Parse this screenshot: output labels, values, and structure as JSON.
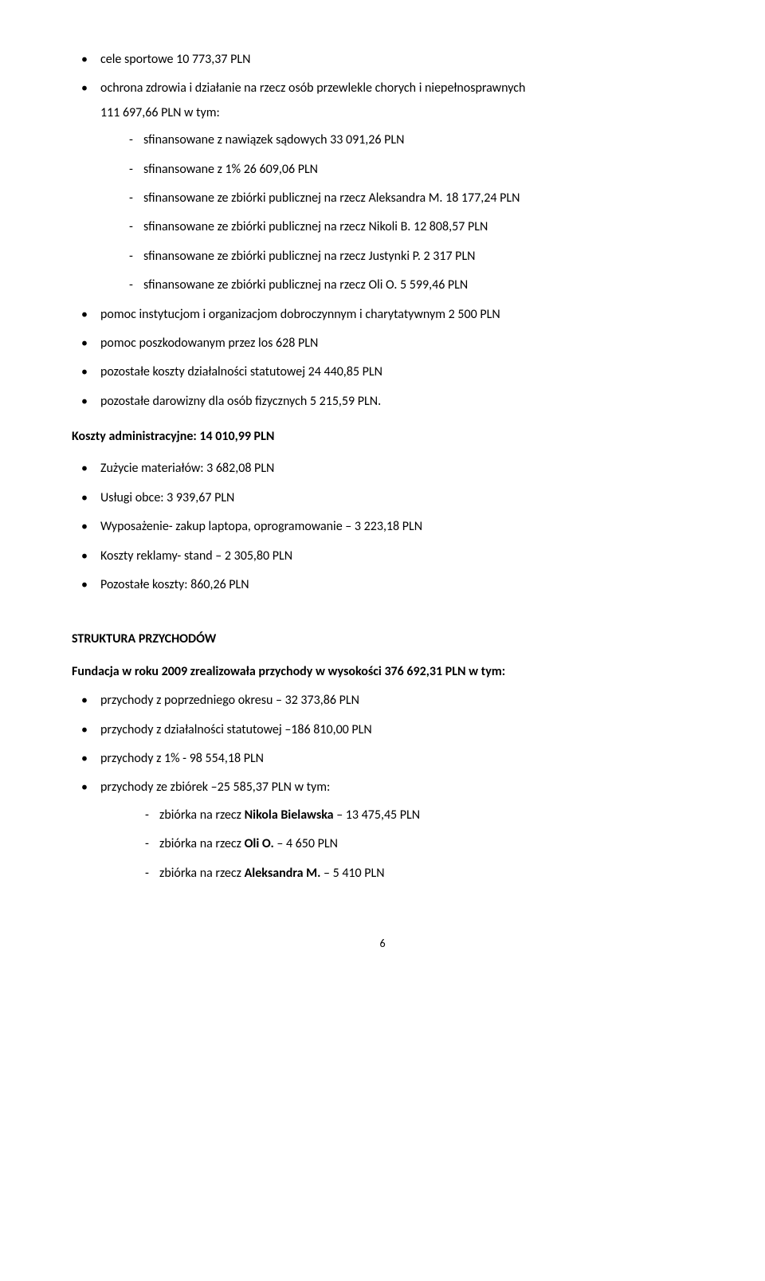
{
  "top_list": {
    "item1": "cele sportowe 10 773,37 PLN",
    "item2_line1": "ochrona zdrowia i działanie na rzecz osób przewlekle chorych i niepełnosprawnych",
    "item2_line2": "111 697,66 PLN w tym:",
    "item2_sub": {
      "s1": "sfinansowane z nawiązek sądowych 33 091,26 PLN",
      "s2": "sfinansowane z 1%  26 609,06 PLN",
      "s3": "sfinansowane ze zbiórki publicznej na rzecz Aleksandra M. 18 177,24 PLN",
      "s4": "sfinansowane ze zbiórki publicznej na rzecz Nikoli B. 12 808,57 PLN",
      "s5": "sfinansowane ze zbiórki publicznej na rzecz Justynki P.  2 317 PLN",
      "s6": "sfinansowane ze zbiórki publicznej na rzecz Oli O. 5 599,46 PLN"
    },
    "item3": "pomoc instytucjom i organizacjom dobroczynnym i charytatywnym 2 500 PLN",
    "item4": "pomoc poszkodowanym przez los 628 PLN",
    "item5": "pozostałe koszty działalności statutowej 24 440,85 PLN",
    "item6": "pozostałe darowizny dla osób fizycznych 5 215,59 PLN."
  },
  "admin_heading": "Koszty administracyjne: 14 010,99 PLN",
  "admin_list": {
    "a1": "Zużycie materiałów: 3 682,08 PLN",
    "a2": "Usługi obce:  3 939,67 PLN",
    "a3": "Wyposażenie- zakup laptopa, oprogramowanie – 3 223,18 PLN",
    "a4": "Koszty reklamy- stand – 2 305,80 PLN",
    "a5": "Pozostałe koszty: 860,26 PLN"
  },
  "struct_heading": "STRUKTURA PRZYCHODÓW",
  "struct_intro": "Fundacja w roku 2009 zrealizowała przychody w wysokości  376 692,31 PLN w tym:",
  "income_list": {
    "i1": "przychody z poprzedniego okresu – 32 373,86 PLN",
    "i2": "przychody z działalności statutowej –186 810,00 PLN",
    "i3": "przychody z 1% - 98 554,18 PLN",
    "i4": "przychody ze zbiórek  –25 585,37 PLN w tym:",
    "i4_sub": {
      "s1_pre": "zbiórka na rzecz ",
      "s1_bold": "Nikola Bielawska",
      "s1_post": " – 13 475,45 PLN",
      "s2_pre": "zbiórka na rzecz ",
      "s2_bold": "Oli O.",
      "s2_post": " – 4 650 PLN",
      "s3_pre": "zbiórka na rzecz ",
      "s3_bold": "Aleksandra M.",
      "s3_post": "  – 5 410 PLN"
    }
  },
  "page_number": "6"
}
